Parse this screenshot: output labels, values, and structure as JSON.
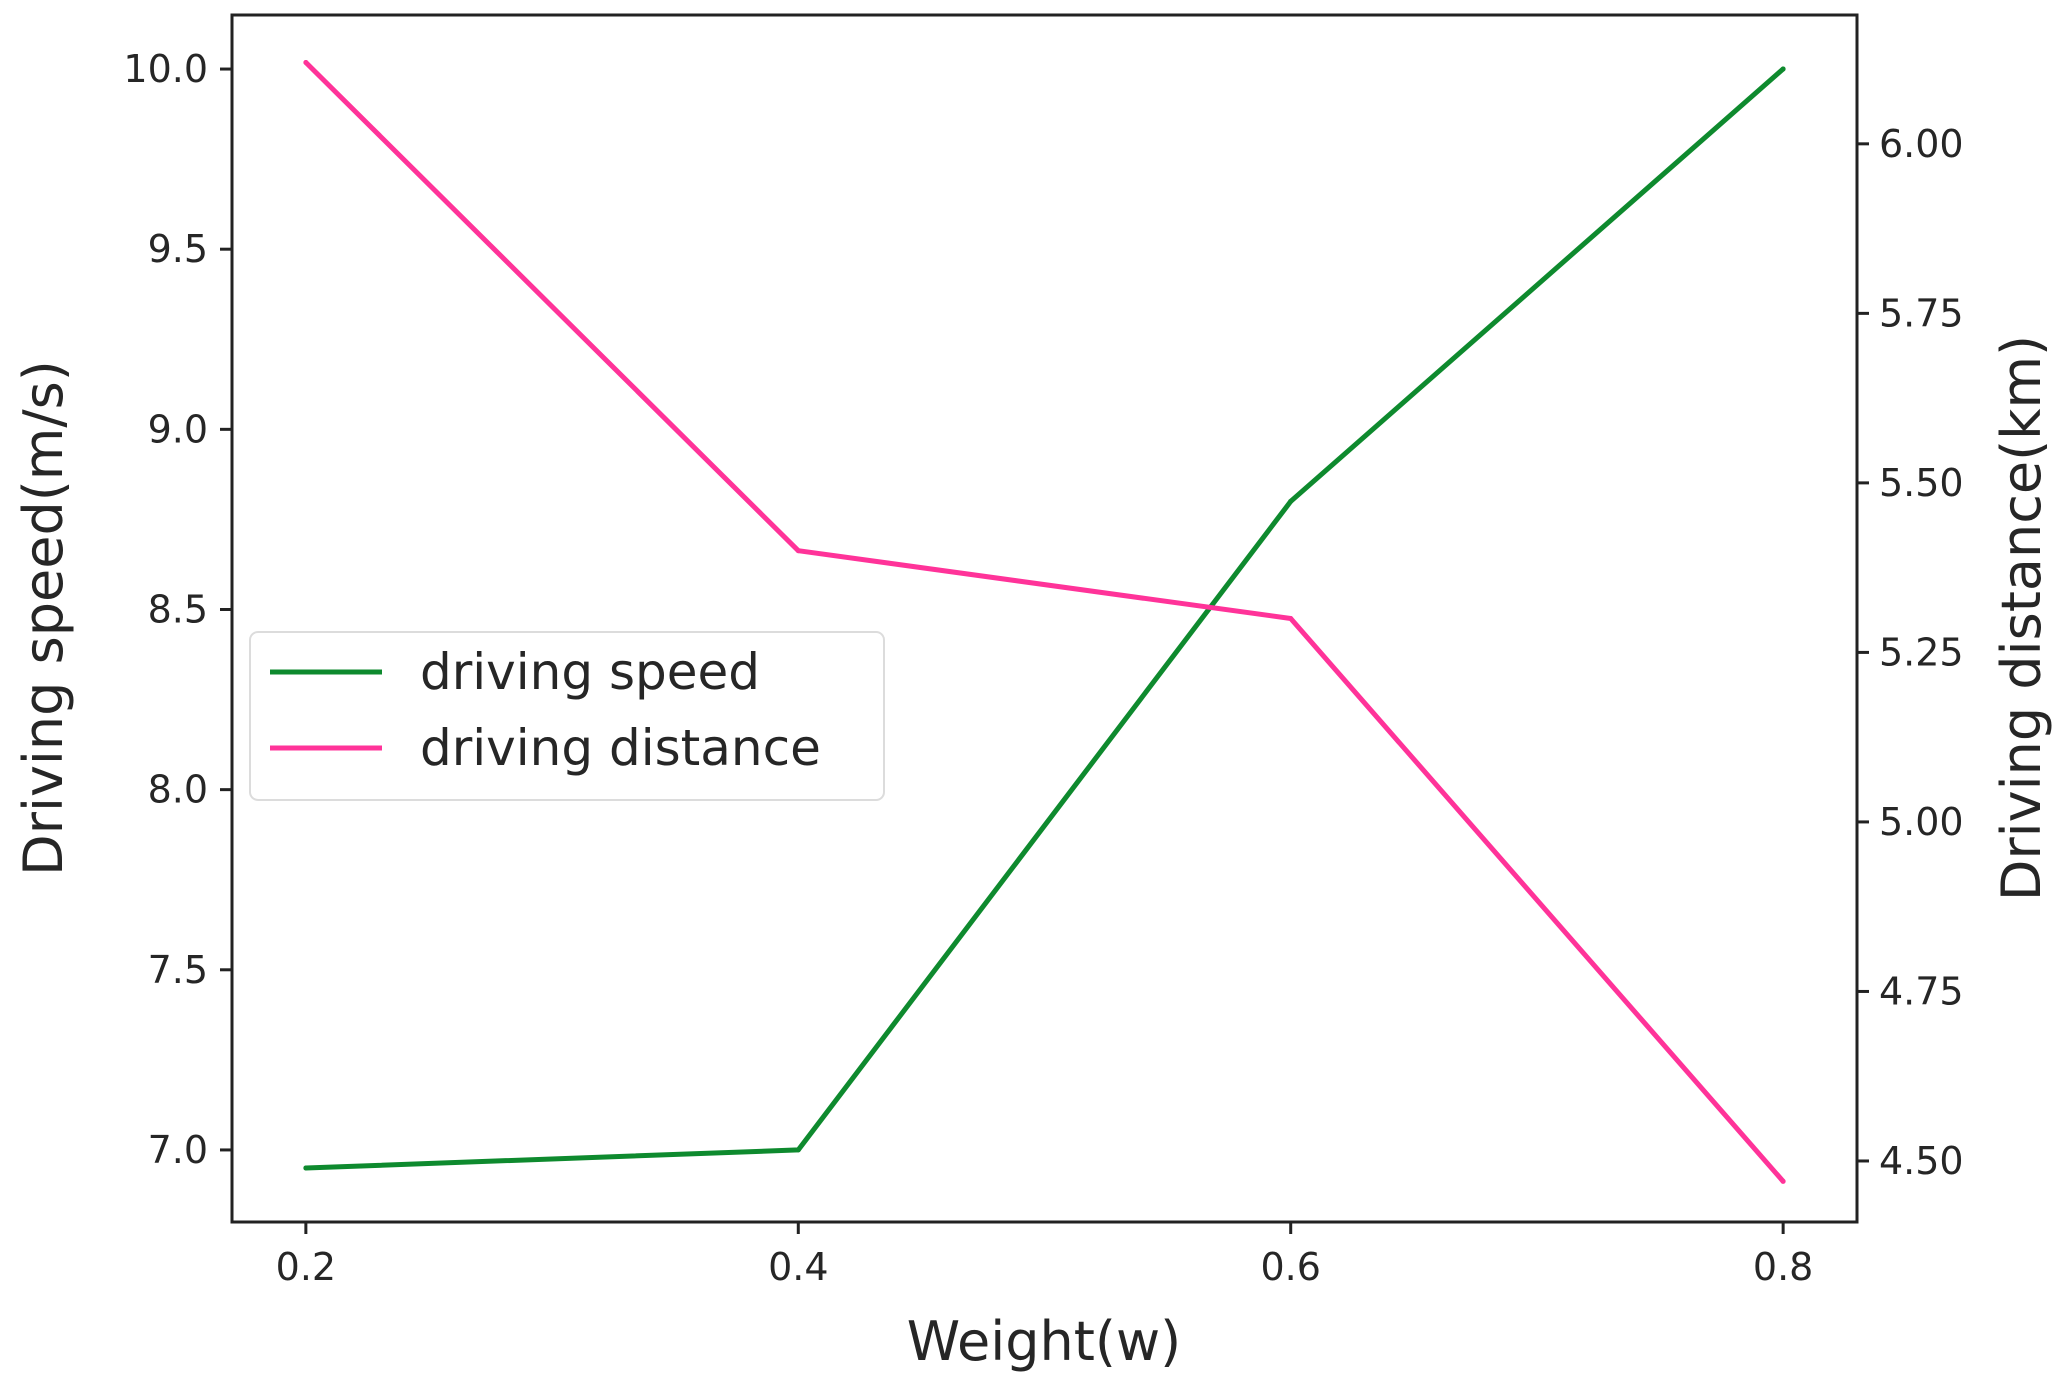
{
  "chart_data": {
    "type": "line",
    "title": "",
    "xlabel": "Weight(w)",
    "ylabel_left": "Driving speed(m/s)",
    "ylabel_right": "Driving distance(km)",
    "x": [
      0.2,
      0.4,
      0.6,
      0.8
    ],
    "x_ticks": [
      "0.2",
      "0.4",
      "0.6",
      "0.8"
    ],
    "xlim": [
      0.17,
      0.83
    ],
    "ylim_left": [
      6.8,
      10.15
    ],
    "ylim_right": [
      4.41,
      6.19
    ],
    "y_ticks_left": [
      "7.0",
      "7.5",
      "8.0",
      "8.5",
      "9.0",
      "9.5",
      "10.0"
    ],
    "y_ticks_right": [
      "4.50",
      "4.75",
      "5.00",
      "5.25",
      "5.50",
      "5.75",
      "6.00"
    ],
    "grid": false,
    "legend_position": "center-left",
    "series": [
      {
        "name": "driving speed",
        "axis": "left",
        "color": "#0e8a2e",
        "values": [
          6.95,
          7.0,
          8.8,
          10.0
        ]
      },
      {
        "name": "driving distance",
        "axis": "right",
        "color": "#ff3399",
        "values": [
          6.12,
          5.4,
          5.3,
          4.47
        ]
      }
    ]
  }
}
